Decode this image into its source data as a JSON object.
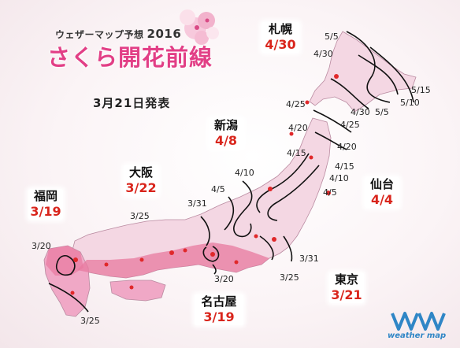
{
  "header": {
    "subtitle": "ウェザーマップ予想",
    "year": "2016",
    "title": "さくら開花前線",
    "announce_date": "3月21日発表"
  },
  "cities": [
    {
      "name": "札幌",
      "date": "4/30"
    },
    {
      "name": "新潟",
      "date": "4/8"
    },
    {
      "name": "大阪",
      "date": "3/22"
    },
    {
      "name": "福岡",
      "date": "3/19"
    },
    {
      "name": "仙台",
      "date": "4/4"
    },
    {
      "name": "東京",
      "date": "3/21"
    },
    {
      "name": "名古屋",
      "date": "3/19"
    }
  ],
  "isoline_labels": [
    "5/5",
    "4/30",
    "5/15",
    "5/10",
    "5/5",
    "4/30",
    "4/25",
    "4/25",
    "4/20",
    "4/20",
    "4/15",
    "4/15",
    "4/10",
    "4/10",
    "4/5",
    "4/5",
    "3/31",
    "3/31",
    "3/25",
    "3/25",
    "3/20",
    "3/20",
    "3/25"
  ],
  "logo": {
    "text": "weather map"
  },
  "colors": {
    "title_pink": "#e23f86",
    "date_red": "#d9251c",
    "land_light": "#f4d7e3",
    "land_mid": "#f0a8c6",
    "land_dark": "#e2629a",
    "city_dot": "#e0282a",
    "logo_blue": "#2f86c6"
  }
}
